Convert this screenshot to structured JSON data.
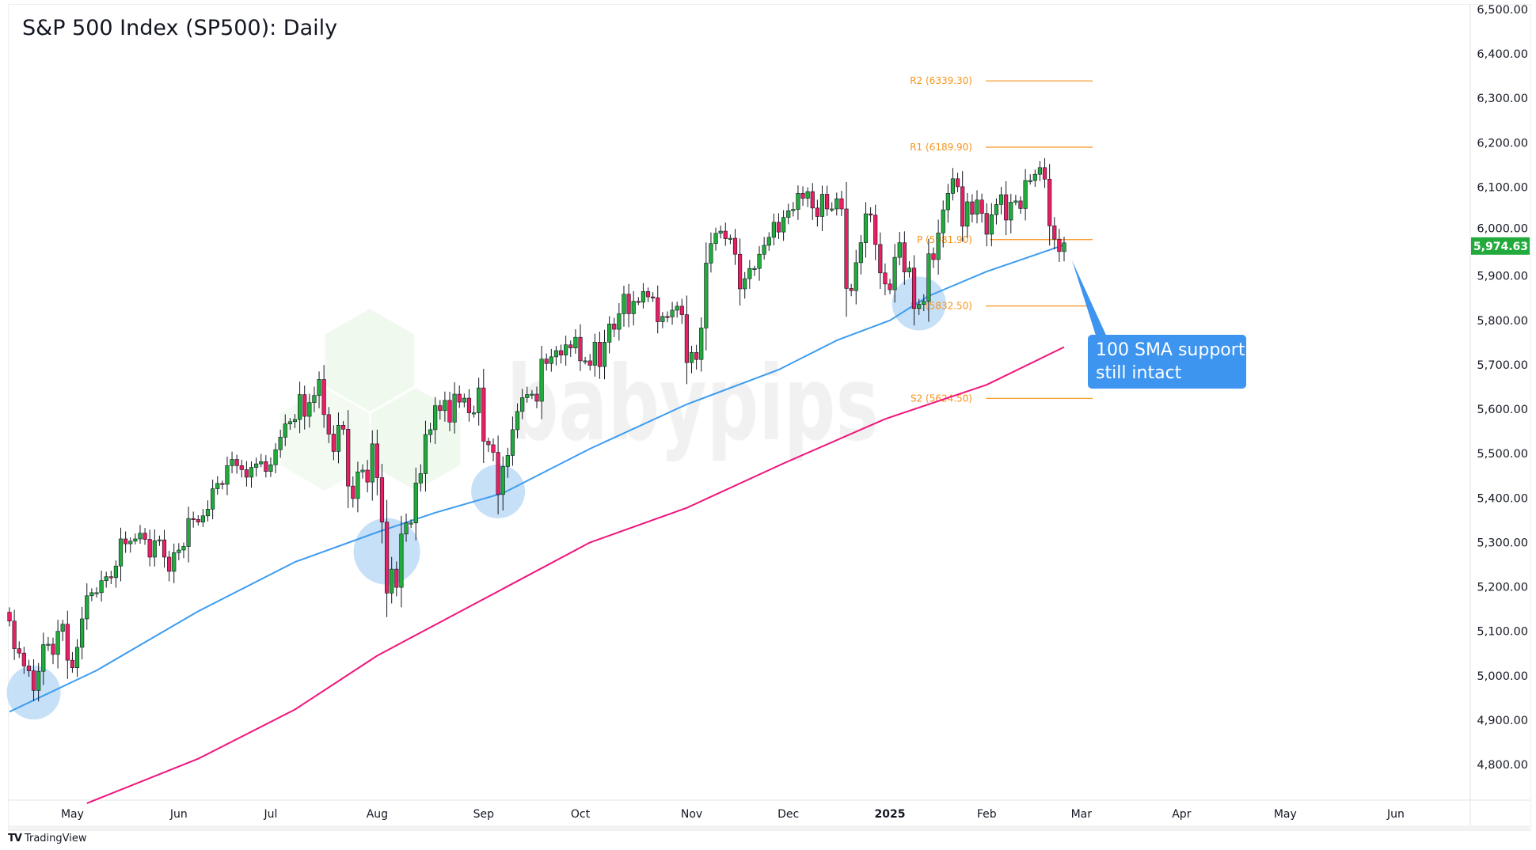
{
  "header": {
    "title": "S&P 500 Index (SP500): Daily"
  },
  "footer": {
    "brand": "TradingView",
    "brand_icon": "tradingview-logo-icon"
  },
  "watermark": {
    "text": "babypips"
  },
  "colors": {
    "up": "#22ab3c",
    "down": "#e91e63",
    "sma100": "#3d9cf0",
    "sma200": "#f0147c",
    "pivot": "#f7931a",
    "callout": "#3d95f0",
    "last_price_badge": "#22ab3c",
    "highlight": "#bcdaf7"
  },
  "chart_data": {
    "type": "candlestick",
    "title": "S&P 500 Index (SP500): Daily",
    "ylim": [
      4720,
      6520
    ],
    "y_ticks": [
      "6,500.00",
      "6,400.00",
      "6,300.00",
      "6,200.00",
      "6,100.00",
      "6,000.00",
      "5,900.00",
      "5,800.00",
      "5,700.00",
      "5,600.00",
      "5,500.00",
      "5,400.00",
      "5,300.00",
      "5,200.00",
      "5,100.00",
      "5,000.00",
      "4,900.00",
      "4,800.00"
    ],
    "x_ticks": [
      {
        "label": "May",
        "date": "2024-05-01"
      },
      {
        "label": "Jun",
        "date": "2024-06-03"
      },
      {
        "label": "Jul",
        "date": "2024-07-01"
      },
      {
        "label": "Aug",
        "date": "2024-08-01"
      },
      {
        "label": "Sep",
        "date": "2024-09-03"
      },
      {
        "label": "Oct",
        "date": "2024-10-01"
      },
      {
        "label": "Nov",
        "date": "2024-11-01"
      },
      {
        "label": "Dec",
        "date": "2024-12-02"
      },
      {
        "label": "2025",
        "date": "2025-01-02",
        "bold": true
      },
      {
        "label": "Feb",
        "date": "2025-02-03"
      },
      {
        "label": "Mar",
        "date": "2025-03-03"
      },
      {
        "label": "Apr",
        "date": "2025-04-01"
      },
      {
        "label": "May",
        "date": "2025-05-01"
      },
      {
        "label": "Jun",
        "date": "2025-06-02"
      }
    ],
    "last_price": "5,974.63",
    "closes": [
      [
        "2024-04-12",
        5123
      ],
      [
        "2024-04-15",
        5061
      ],
      [
        "2024-04-16",
        5051
      ],
      [
        "2024-04-17",
        5022
      ],
      [
        "2024-04-18",
        5011
      ],
      [
        "2024-04-19",
        4967
      ],
      [
        "2024-04-22",
        5010
      ],
      [
        "2024-04-23",
        5070
      ],
      [
        "2024-04-24",
        5071
      ],
      [
        "2024-04-25",
        5048
      ],
      [
        "2024-04-26",
        5100
      ],
      [
        "2024-04-29",
        5116
      ],
      [
        "2024-04-30",
        5035
      ],
      [
        "2024-05-01",
        5018
      ],
      [
        "2024-05-02",
        5064
      ],
      [
        "2024-05-03",
        5128
      ],
      [
        "2024-05-06",
        5180
      ],
      [
        "2024-05-07",
        5187
      ],
      [
        "2024-05-08",
        5187
      ],
      [
        "2024-05-09",
        5214
      ],
      [
        "2024-05-10",
        5223
      ],
      [
        "2024-05-13",
        5221
      ],
      [
        "2024-05-14",
        5247
      ],
      [
        "2024-05-15",
        5308
      ],
      [
        "2024-05-16",
        5297
      ],
      [
        "2024-05-17",
        5303
      ],
      [
        "2024-05-20",
        5308
      ],
      [
        "2024-05-21",
        5321
      ],
      [
        "2024-05-22",
        5307
      ],
      [
        "2024-05-23",
        5267
      ],
      [
        "2024-05-24",
        5304
      ],
      [
        "2024-05-28",
        5306
      ],
      [
        "2024-05-29",
        5267
      ],
      [
        "2024-05-30",
        5235
      ],
      [
        "2024-05-31",
        5277
      ],
      [
        "2024-06-03",
        5283
      ],
      [
        "2024-06-04",
        5291
      ],
      [
        "2024-06-05",
        5354
      ],
      [
        "2024-06-06",
        5352
      ],
      [
        "2024-06-07",
        5346
      ],
      [
        "2024-06-10",
        5360
      ],
      [
        "2024-06-11",
        5375
      ],
      [
        "2024-06-12",
        5421
      ],
      [
        "2024-06-13",
        5433
      ],
      [
        "2024-06-14",
        5431
      ],
      [
        "2024-06-17",
        5473
      ],
      [
        "2024-06-18",
        5487
      ],
      [
        "2024-06-20",
        5473
      ],
      [
        "2024-06-21",
        5464
      ],
      [
        "2024-06-24",
        5447
      ],
      [
        "2024-06-25",
        5469
      ],
      [
        "2024-06-26",
        5477
      ],
      [
        "2024-06-27",
        5482
      ],
      [
        "2024-06-28",
        5460
      ],
      [
        "2024-07-01",
        5475
      ],
      [
        "2024-07-02",
        5509
      ],
      [
        "2024-07-03",
        5537
      ],
      [
        "2024-07-05",
        5567
      ],
      [
        "2024-07-08",
        5572
      ],
      [
        "2024-07-09",
        5577
      ],
      [
        "2024-07-10",
        5633
      ],
      [
        "2024-07-11",
        5584
      ],
      [
        "2024-07-12",
        5615
      ],
      [
        "2024-07-15",
        5631
      ],
      [
        "2024-07-16",
        5667
      ],
      [
        "2024-07-17",
        5588
      ],
      [
        "2024-07-18",
        5544
      ],
      [
        "2024-07-19",
        5505
      ],
      [
        "2024-07-22",
        5564
      ],
      [
        "2024-07-23",
        5555
      ],
      [
        "2024-07-24",
        5427
      ],
      [
        "2024-07-25",
        5399
      ],
      [
        "2024-07-26",
        5459
      ],
      [
        "2024-07-29",
        5463
      ],
      [
        "2024-07-30",
        5436
      ],
      [
        "2024-07-31",
        5522
      ],
      [
        "2024-08-01",
        5446
      ],
      [
        "2024-08-02",
        5346
      ],
      [
        "2024-08-05",
        5186
      ],
      [
        "2024-08-06",
        5240
      ],
      [
        "2024-08-07",
        5199
      ],
      [
        "2024-08-08",
        5319
      ],
      [
        "2024-08-09",
        5344
      ],
      [
        "2024-08-12",
        5344
      ],
      [
        "2024-08-13",
        5434
      ],
      [
        "2024-08-14",
        5455
      ],
      [
        "2024-08-15",
        5543
      ],
      [
        "2024-08-16",
        5554
      ],
      [
        "2024-08-19",
        5608
      ],
      [
        "2024-08-20",
        5597
      ],
      [
        "2024-08-21",
        5620
      ],
      [
        "2024-08-22",
        5571
      ],
      [
        "2024-08-23",
        5634
      ],
      [
        "2024-08-26",
        5616
      ],
      [
        "2024-08-27",
        5625
      ],
      [
        "2024-08-28",
        5592
      ],
      [
        "2024-08-29",
        5592
      ],
      [
        "2024-08-30",
        5648
      ],
      [
        "2024-09-03",
        5528
      ],
      [
        "2024-09-04",
        5520
      ],
      [
        "2024-09-05",
        5503
      ],
      [
        "2024-09-06",
        5408
      ],
      [
        "2024-09-09",
        5471
      ],
      [
        "2024-09-10",
        5496
      ],
      [
        "2024-09-11",
        5554
      ],
      [
        "2024-09-12",
        5595
      ],
      [
        "2024-09-13",
        5626
      ],
      [
        "2024-09-16",
        5633
      ],
      [
        "2024-09-17",
        5634
      ],
      [
        "2024-09-18",
        5618
      ],
      [
        "2024-09-19",
        5713
      ],
      [
        "2024-09-20",
        5703
      ],
      [
        "2024-09-23",
        5718
      ],
      [
        "2024-09-24",
        5732
      ],
      [
        "2024-09-25",
        5722
      ],
      [
        "2024-09-26",
        5745
      ],
      [
        "2024-09-27",
        5738
      ],
      [
        "2024-09-30",
        5762
      ],
      [
        "2024-10-01",
        5709
      ],
      [
        "2024-10-02",
        5709
      ],
      [
        "2024-10-03",
        5699
      ],
      [
        "2024-10-04",
        5751
      ],
      [
        "2024-10-07",
        5696
      ],
      [
        "2024-10-08",
        5751
      ],
      [
        "2024-10-09",
        5792
      ],
      [
        "2024-10-10",
        5780
      ],
      [
        "2024-10-11",
        5815
      ],
      [
        "2024-10-14",
        5859
      ],
      [
        "2024-10-15",
        5815
      ],
      [
        "2024-10-16",
        5843
      ],
      [
        "2024-10-17",
        5841
      ],
      [
        "2024-10-18",
        5865
      ],
      [
        "2024-10-21",
        5853
      ],
      [
        "2024-10-22",
        5851
      ],
      [
        "2024-10-23",
        5797
      ],
      [
        "2024-10-24",
        5809
      ],
      [
        "2024-10-25",
        5808
      ],
      [
        "2024-10-28",
        5823
      ],
      [
        "2024-10-29",
        5832
      ],
      [
        "2024-10-30",
        5813
      ],
      [
        "2024-10-31",
        5705
      ],
      [
        "2024-11-01",
        5728
      ],
      [
        "2024-11-04",
        5712
      ],
      [
        "2024-11-05",
        5783
      ],
      [
        "2024-11-06",
        5929
      ],
      [
        "2024-11-07",
        5973
      ],
      [
        "2024-11-08",
        5996
      ],
      [
        "2024-11-11",
        6001
      ],
      [
        "2024-11-12",
        5984
      ],
      [
        "2024-11-13",
        5985
      ],
      [
        "2024-11-14",
        5949
      ],
      [
        "2024-11-15",
        5871
      ],
      [
        "2024-11-18",
        5894
      ],
      [
        "2024-11-19",
        5917
      ],
      [
        "2024-11-20",
        5917
      ],
      [
        "2024-11-21",
        5949
      ],
      [
        "2024-11-22",
        5969
      ],
      [
        "2024-11-25",
        5987
      ],
      [
        "2024-11-26",
        6021
      ],
      [
        "2024-11-27",
        5999
      ],
      [
        "2024-11-29",
        6032
      ],
      [
        "2024-12-02",
        6047
      ],
      [
        "2024-12-03",
        6050
      ],
      [
        "2024-12-04",
        6086
      ],
      [
        "2024-12-05",
        6075
      ],
      [
        "2024-12-06",
        6090
      ],
      [
        "2024-12-09",
        6053
      ],
      [
        "2024-12-10",
        6034
      ],
      [
        "2024-12-11",
        6084
      ],
      [
        "2024-12-12",
        6051
      ],
      [
        "2024-12-13",
        6051
      ],
      [
        "2024-12-16",
        6074
      ],
      [
        "2024-12-17",
        6051
      ],
      [
        "2024-12-18",
        5872
      ],
      [
        "2024-12-19",
        5867
      ],
      [
        "2024-12-20",
        5930
      ],
      [
        "2024-12-23",
        5975
      ],
      [
        "2024-12-24",
        6040
      ],
      [
        "2024-12-26",
        6037
      ],
      [
        "2024-12-27",
        5971
      ],
      [
        "2024-12-30",
        5907
      ],
      [
        "2024-12-31",
        5882
      ],
      [
        "2025-01-02",
        5869
      ],
      [
        "2025-01-03",
        5942
      ],
      [
        "2025-01-06",
        5975
      ],
      [
        "2025-01-07",
        5909
      ],
      [
        "2025-01-08",
        5918
      ],
      [
        "2025-01-10",
        5827
      ],
      [
        "2025-01-13",
        5836
      ],
      [
        "2025-01-14",
        5843
      ],
      [
        "2025-01-15",
        5950
      ],
      [
        "2025-01-16",
        5937
      ],
      [
        "2025-01-17",
        5997
      ],
      [
        "2025-01-21",
        6049
      ],
      [
        "2025-01-22",
        6086
      ],
      [
        "2025-01-23",
        6119
      ],
      [
        "2025-01-24",
        6101
      ],
      [
        "2025-01-27",
        6012
      ],
      [
        "2025-01-28",
        6067
      ],
      [
        "2025-01-29",
        6039
      ],
      [
        "2025-01-30",
        6071
      ],
      [
        "2025-01-31",
        6041
      ],
      [
        "2025-02-03",
        5994
      ],
      [
        "2025-02-04",
        6038
      ],
      [
        "2025-02-05",
        6061
      ],
      [
        "2025-02-06",
        6083
      ],
      [
        "2025-02-07",
        6026
      ],
      [
        "2025-02-10",
        6066
      ],
      [
        "2025-02-11",
        6069
      ],
      [
        "2025-02-12",
        6052
      ],
      [
        "2025-02-13",
        6115
      ],
      [
        "2025-02-14",
        6115
      ],
      [
        "2025-02-18",
        6129
      ],
      [
        "2025-02-19",
        6144
      ],
      [
        "2025-02-20",
        6118
      ],
      [
        "2025-02-21",
        6013
      ],
      [
        "2025-02-24",
        5983
      ],
      [
        "2025-02-25",
        5955
      ],
      [
        "2025-02-26",
        5974.63
      ]
    ],
    "sma100": [
      [
        "2024-04-12",
        4919
      ],
      [
        "2024-05-08",
        5012
      ],
      [
        "2024-06-07",
        5145
      ],
      [
        "2024-07-09",
        5256
      ],
      [
        "2024-08-01",
        5323
      ],
      [
        "2024-08-19",
        5367
      ],
      [
        "2024-09-09",
        5411
      ],
      [
        "2024-10-03",
        5511
      ],
      [
        "2024-10-31",
        5611
      ],
      [
        "2024-11-27",
        5689
      ],
      [
        "2024-12-16",
        5755
      ],
      [
        "2025-01-02",
        5800
      ],
      [
        "2025-01-15",
        5855
      ],
      [
        "2025-02-03",
        5910
      ],
      [
        "2025-02-26",
        5970
      ]
    ],
    "sma200": [
      [
        "2024-05-06",
        4713
      ],
      [
        "2024-06-07",
        4813
      ],
      [
        "2024-07-09",
        4924
      ],
      [
        "2024-08-01",
        5045
      ],
      [
        "2024-09-06",
        5190
      ],
      [
        "2024-10-03",
        5300
      ],
      [
        "2024-10-31",
        5378
      ],
      [
        "2024-11-29",
        5478
      ],
      [
        "2024-12-31",
        5578
      ],
      [
        "2025-02-03",
        5655
      ],
      [
        "2025-02-26",
        5740
      ]
    ],
    "pivots": [
      {
        "label": "R2 (6339.30)",
        "value": 6339.3
      },
      {
        "label": "R1 (6189.90)",
        "value": 6189.9
      },
      {
        "label": "P (5981.90)",
        "value": 5981.9
      },
      {
        "label": "S1 (5832.50)",
        "value": 5832.5
      },
      {
        "label": "S2 (5624.50)",
        "value": 5624.5
      }
    ],
    "highlights": [
      [
        "2024-04-19",
        4962
      ],
      [
        "2024-08-05",
        5280
      ],
      [
        "2024-09-06",
        5415
      ],
      [
        "2025-01-13",
        5838
      ]
    ],
    "annotation": {
      "text_lines": [
        "100 SMA support",
        "still intact"
      ],
      "points_to": [
        "2025-02-26",
        5935
      ]
    }
  }
}
